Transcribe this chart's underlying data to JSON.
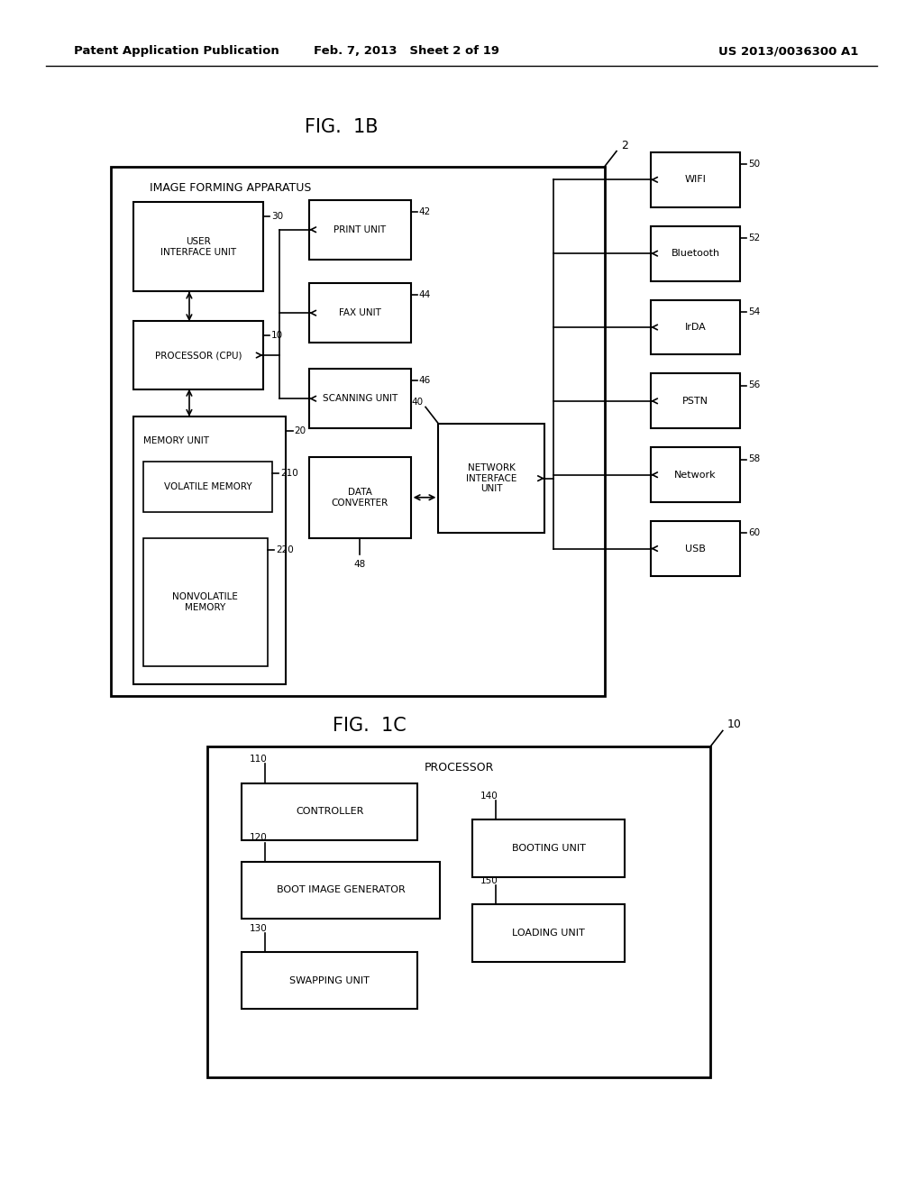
{
  "background_color": "#ffffff",
  "header_left": "Patent Application Publication",
  "header_mid": "Feb. 7, 2013   Sheet 2 of 19",
  "header_right": "US 2013/0036300 A1",
  "fig1b_title": "FIG.  1B",
  "fig1c_title": "FIG.  1C"
}
